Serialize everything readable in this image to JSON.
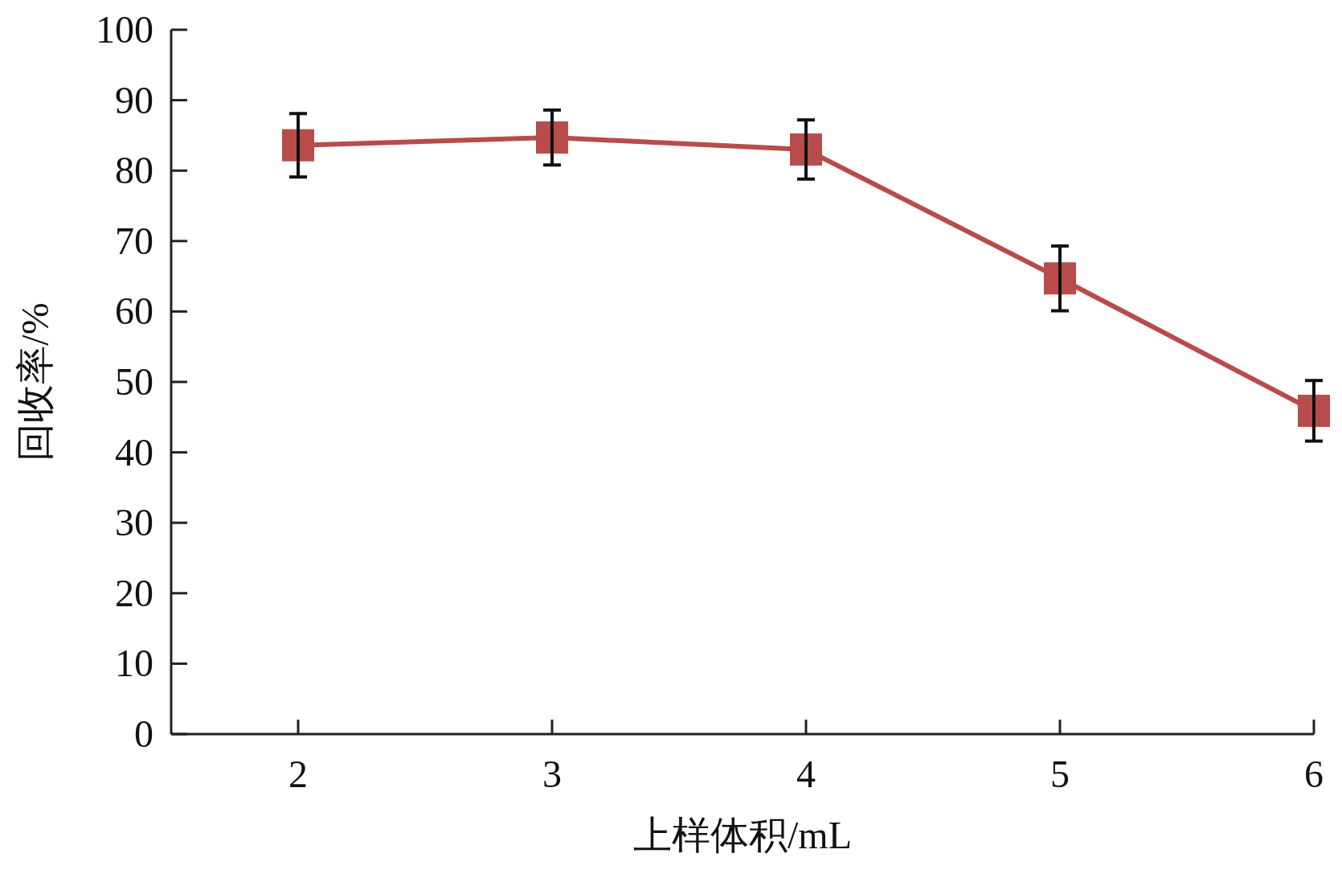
{
  "chart_data": {
    "type": "line",
    "xlabel": "上样体积/mL",
    "ylabel": "回收率/%",
    "x": [
      2,
      3,
      4,
      5,
      6
    ],
    "series": [
      {
        "color": "#b84c4a",
        "values": [
          83.6,
          84.7,
          83.0,
          64.7,
          45.9
        ],
        "errors": [
          4.5,
          3.9,
          4.2,
          4.6,
          4.3
        ]
      }
    ],
    "marker": "square",
    "line_style": "solid",
    "xlim": [
      1.5,
      6
    ],
    "xticks": [
      2,
      3,
      4,
      5,
      6
    ],
    "ylim": [
      0,
      100
    ],
    "yticks": [
      0,
      10,
      20,
      30,
      40,
      50,
      60,
      70,
      80,
      90,
      100
    ]
  }
}
